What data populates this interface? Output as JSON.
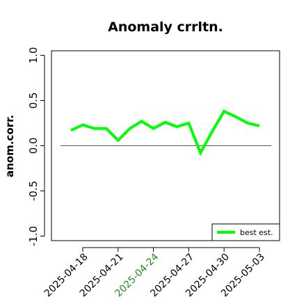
{
  "chart_data": {
    "type": "line",
    "title": "Anomaly crrltn.",
    "xlabel": "",
    "ylabel": "anom.corr.",
    "ylim": [
      -1.05,
      1.05
    ],
    "yticks": [
      -1.0,
      -0.5,
      0.0,
      0.5,
      1.0
    ],
    "ytick_labels": [
      "-1.0",
      "-0.5",
      "0.0",
      "0.5",
      "1.0"
    ],
    "x": [
      "2025-04-17",
      "2025-04-18",
      "2025-04-19",
      "2025-04-20",
      "2025-04-21",
      "2025-04-22",
      "2025-04-23",
      "2025-04-24",
      "2025-04-25",
      "2025-04-26",
      "2025-04-27",
      "2025-04-28",
      "2025-04-29",
      "2025-04-30",
      "2025-05-01",
      "2025-05-02",
      "2025-05-03"
    ],
    "xticks": [
      "2025-04-18",
      "2025-04-21",
      "2025-04-24",
      "2025-04-27",
      "2025-04-30",
      "2025-05-03"
    ],
    "highlight_tick": "2025-04-24",
    "highlight_color": "#228b22",
    "reference_line": 0.0,
    "series": [
      {
        "name": "best est.",
        "color": "#00ff00",
        "values": [
          0.17,
          0.23,
          0.19,
          0.19,
          0.06,
          0.19,
          0.27,
          0.19,
          0.26,
          0.21,
          0.25,
          -0.08,
          0.16,
          0.38,
          0.32,
          0.25,
          0.22
        ]
      }
    ],
    "legend_position": "bottom-right",
    "grid": false
  }
}
